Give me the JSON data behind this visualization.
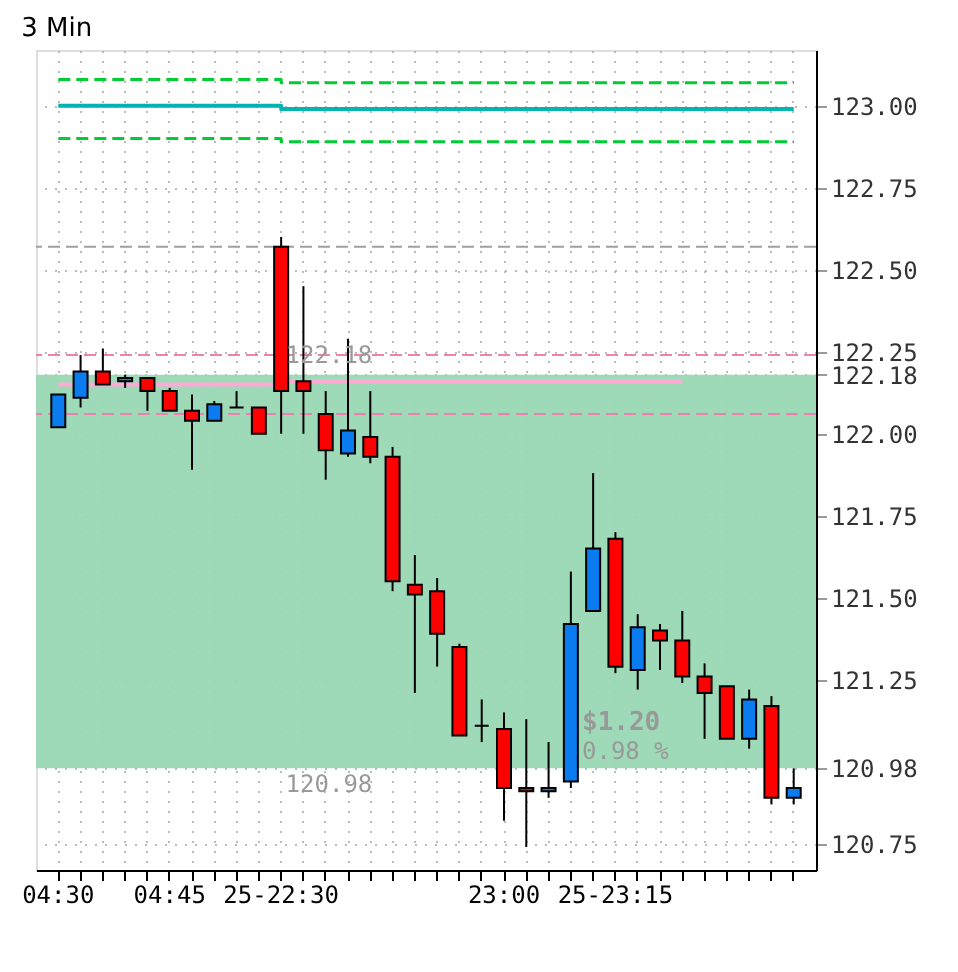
{
  "chart_data": {
    "type": "candlestick",
    "title": "3 Min",
    "categories": [
      "04:30",
      null,
      null,
      null,
      null,
      "04:45",
      null,
      null,
      null,
      null,
      "25-22:30",
      null,
      null,
      null,
      null,
      null,
      null,
      null,
      null,
      null,
      "23:00",
      null,
      null,
      null,
      null,
      "25-23:15",
      null,
      null,
      null,
      null,
      null,
      null,
      null,
      null
    ],
    "ohlc": [
      [
        122.02,
        122.12,
        122.02,
        122.12
      ],
      [
        122.11,
        122.24,
        122.08,
        122.19
      ],
      [
        122.19,
        122.26,
        122.15,
        122.15
      ],
      [
        122.16,
        122.18,
        122.14,
        122.17
      ],
      [
        122.17,
        122.17,
        122.07,
        122.13
      ],
      [
        122.13,
        122.14,
        122.07,
        122.07
      ],
      [
        122.07,
        122.12,
        121.89,
        122.04
      ],
      [
        122.04,
        122.1,
        122.04,
        122.09
      ],
      [
        122.08,
        122.13,
        122.08,
        122.08
      ],
      [
        122.08,
        122.08,
        122.0,
        122.0
      ],
      [
        122.57,
        122.6,
        122.0,
        122.13
      ],
      [
        122.16,
        122.45,
        122.0,
        122.13
      ],
      [
        122.06,
        122.13,
        121.86,
        121.95
      ],
      [
        121.94,
        122.29,
        121.93,
        122.01
      ],
      [
        121.99,
        122.13,
        121.91,
        121.93
      ],
      [
        121.93,
        121.96,
        121.52,
        121.55
      ],
      [
        121.54,
        121.63,
        121.21,
        121.51
      ],
      [
        121.52,
        121.56,
        121.29,
        121.39
      ],
      [
        121.35,
        121.36,
        121.08,
        121.08
      ],
      [
        121.11,
        121.19,
        121.06,
        121.11
      ],
      [
        121.1,
        121.15,
        120.82,
        120.92
      ],
      [
        120.92,
        121.13,
        120.74,
        120.91
      ],
      [
        120.91,
        121.06,
        120.89,
        120.92
      ],
      [
        120.94,
        121.58,
        120.92,
        121.42
      ],
      [
        121.46,
        121.88,
        121.46,
        121.65
      ],
      [
        121.68,
        121.7,
        121.27,
        121.29
      ],
      [
        121.28,
        121.45,
        121.22,
        121.41
      ],
      [
        121.4,
        121.42,
        121.28,
        121.37
      ],
      [
        121.37,
        121.46,
        121.24,
        121.26
      ],
      [
        121.26,
        121.3,
        121.07,
        121.21
      ],
      [
        121.23,
        121.23,
        121.07,
        121.07
      ],
      [
        121.07,
        121.22,
        121.04,
        121.19
      ],
      [
        121.17,
        121.2,
        120.87,
        120.89
      ],
      [
        120.89,
        120.98,
        120.87,
        120.92
      ]
    ],
    "colors": [
      "#0a7cf0",
      "#0a7cf0",
      "#ff0000",
      "#0a7cf0",
      "#ff0000",
      "#ff0000",
      "#ff0000",
      "#0a7cf0",
      "#000000",
      "#ff0000",
      "#ff0000",
      "#ff0000",
      "#ff0000",
      "#0a7cf0",
      "#ff0000",
      "#ff0000",
      "#ff0000",
      "#ff0000",
      "#ff0000",
      "#000000",
      "#ff0000",
      "#ff0000",
      "#0a7cf0",
      "#0a7cf0",
      "#0a7cf0",
      "#ff0000",
      "#0a7cf0",
      "#ff0000",
      "#ff0000",
      "#ff0000",
      "#ff0000",
      "#0a7cf0",
      "#ff0000",
      "#0a7cf0"
    ],
    "series": [
      {
        "type": "step",
        "color": "#00cc33",
        "line_style": "dashed",
        "values": [
          123.08,
          123.08,
          123.08,
          123.08,
          123.08,
          123.08,
          123.08,
          123.08,
          123.08,
          123.08,
          123.07,
          123.07,
          123.07,
          123.07,
          123.07,
          123.07,
          123.07,
          123.07,
          123.07,
          123.07,
          123.07,
          123.07,
          123.07,
          123.07,
          123.07,
          123.07,
          123.07,
          123.07,
          123.07,
          123.07,
          123.07,
          123.07,
          123.07,
          123.07
        ]
      },
      {
        "type": "step",
        "color": "#00b4b4",
        "line_style": "solid",
        "values": [
          123.0,
          123.0,
          123.0,
          123.0,
          123.0,
          123.0,
          123.0,
          123.0,
          123.0,
          123.0,
          122.99,
          122.99,
          122.99,
          122.99,
          122.99,
          122.99,
          122.99,
          122.99,
          122.99,
          122.99,
          122.99,
          122.99,
          122.99,
          122.99,
          122.99,
          122.99,
          122.99,
          122.99,
          122.99,
          122.99,
          122.99,
          122.99,
          122.99,
          122.99
        ]
      },
      {
        "type": "step",
        "color": "#00cc33",
        "line_style": "dashed",
        "values": [
          122.9,
          122.9,
          122.9,
          122.9,
          122.9,
          122.9,
          122.9,
          122.9,
          122.9,
          122.9,
          122.89,
          122.89,
          122.89,
          122.89,
          122.89,
          122.89,
          122.89,
          122.89,
          122.89,
          122.89,
          122.89,
          122.89,
          122.89,
          122.89,
          122.89,
          122.89,
          122.89,
          122.89,
          122.89,
          122.89,
          122.89,
          122.89,
          122.89,
          122.89
        ]
      },
      {
        "type": "step",
        "color": "#ffaad4",
        "line_style": "solid",
        "values": [
          122.15,
          122.15,
          122.15,
          122.15,
          122.15,
          122.15,
          122.15,
          122.15,
          122.15,
          122.15,
          122.16,
          122.16,
          122.16,
          122.16,
          122.16,
          122.16,
          122.16,
          122.16,
          122.16,
          122.16,
          122.16,
          122.16,
          122.16,
          122.16,
          122.16,
          122.16,
          122.16,
          122.16,
          122.16,
          null,
          null,
          null,
          null,
          null
        ]
      }
    ],
    "ref_lines": [
      {
        "axis": "y",
        "value": 122.57,
        "color": "#a0a0a0",
        "line_style": "dashed"
      },
      {
        "axis": "y",
        "value": 122.24,
        "color": "#f080b0",
        "line_style": "dashed"
      },
      {
        "axis": "y",
        "value": 122.06,
        "color": "#f080b0",
        "line_style": "dashed"
      }
    ],
    "bands": [
      {
        "axis": "y",
        "from": 120.98,
        "to": 122.18,
        "color": "#99d8b4"
      }
    ],
    "annotations": [
      {
        "text": "122.18",
        "y": 122.18
      },
      {
        "text": "120.98",
        "y": 120.98
      },
      "$1.20",
      "0.98 %"
    ],
    "ylim": [
      120.67,
      123.17
    ],
    "yticks": [
      {
        "value": 120.75,
        "label": "120.75"
      },
      {
        "value": 120.98,
        "label": "120.98"
      },
      {
        "value": 121.25,
        "label": "121.25"
      },
      {
        "value": 121.5,
        "label": "121.50"
      },
      {
        "value": 121.75,
        "label": "121.75"
      },
      {
        "value": 122,
        "label": "122.00"
      },
      {
        "value": 122.18,
        "label": "122.18"
      },
      {
        "value": 122.25,
        "label": "122.25"
      },
      {
        "value": 122.5,
        "label": "122.50"
      },
      {
        "value": 122.75,
        "label": "122.75"
      },
      {
        "value": 123,
        "label": "123.00"
      }
    ],
    "grid": true
  }
}
